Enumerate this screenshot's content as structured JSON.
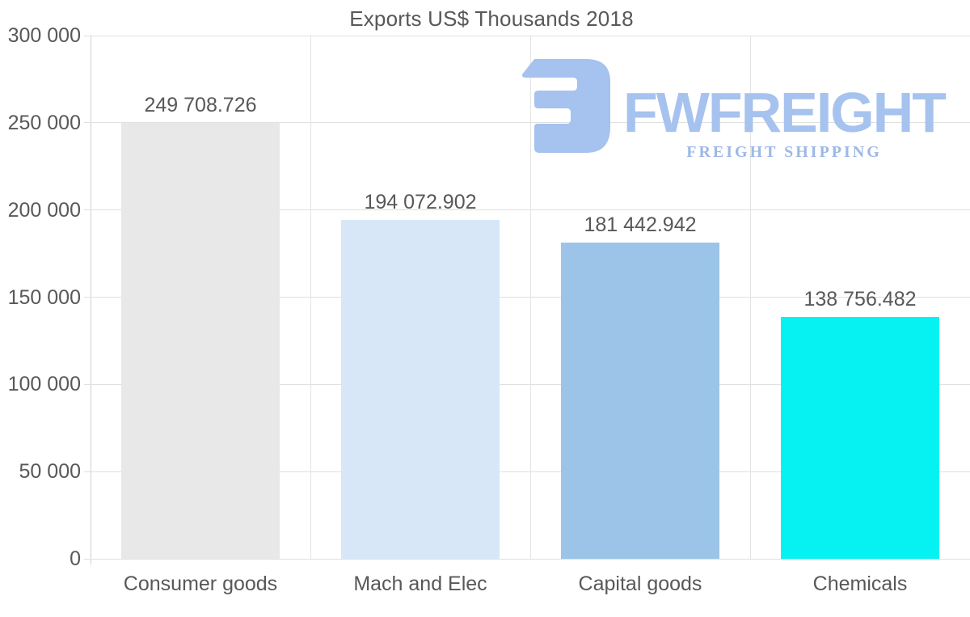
{
  "title": "Exports US$ Thousands 2018",
  "chart_data": {
    "type": "bar",
    "title": "Exports US$ Thousands 2018",
    "categories": [
      "Consumer goods",
      "Mach and Elec",
      "Capital goods",
      "Chemicals"
    ],
    "values": [
      249708.726,
      194072.902,
      181442.942,
      138756.482
    ],
    "value_labels": [
      "249 708.726",
      "194 072.902",
      "181 442.942",
      "138 756.482"
    ],
    "bar_colors": [
      "#e8e8e9",
      "#d7e7f8",
      "#9bc4e8",
      "#06f2f2"
    ],
    "xlabel": "",
    "ylabel": "",
    "ylim": [
      0,
      300000
    ],
    "ytick_interval": 50000,
    "ytick_labels": [
      "0",
      "50 000",
      "100 000",
      "150 000",
      "200 000",
      "250 000",
      "300 000"
    ],
    "grid": true,
    "legend_position": "none"
  },
  "watermark": {
    "brand": "FWFREIGHT",
    "tagline": "FREIGHT SHIPPING",
    "brand_color": "#a6c2ee",
    "tagline_color": "#9cb8e7"
  },
  "colors": {
    "text": "#58585a",
    "gridline": "#e0e0e0",
    "axis_line": "#cfcfcf",
    "background": "#ffffff"
  }
}
